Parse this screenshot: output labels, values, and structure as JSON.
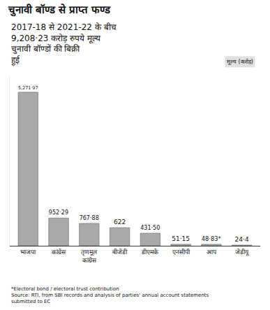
{
  "chart_data": {
    "type": "bar",
    "title": "चुनावी बॉण्ड से प्राप्त फण्ड",
    "subtitle": "2017-18 से 2021-22 के बीच 9,208·23 करोड़ रुपये मूल्य चुनावी बॉण्डों की बिक्री हुई",
    "categories": [
      "भाजपा",
      "कांग्रेस",
      "तृणमूल कांग्रेस",
      "बीजेडी",
      "डीएमके",
      "एनसीपी",
      "आप",
      "जेडीयू"
    ],
    "values": [
      5271.97,
      952.29,
      767.88,
      622,
      431.5,
      51.15,
      48.83,
      24.4
    ],
    "value_labels": [
      "5,271·97",
      "952·29",
      "767·88",
      "622",
      "431·50",
      "51·15",
      "48·83*",
      "24·4"
    ],
    "color": "#a9a9a9",
    "ylim": [
      0,
      5800
    ],
    "grid": false,
    "data_labels": true,
    "tick_labels": "x",
    "annotations": [
      "मूल्य (करोड़)",
      "*Electoral bond / electoral trust contribution",
      "Source: RTI, from SBI records and analysis of parties' annual account statements submitted to EC"
    ]
  }
}
